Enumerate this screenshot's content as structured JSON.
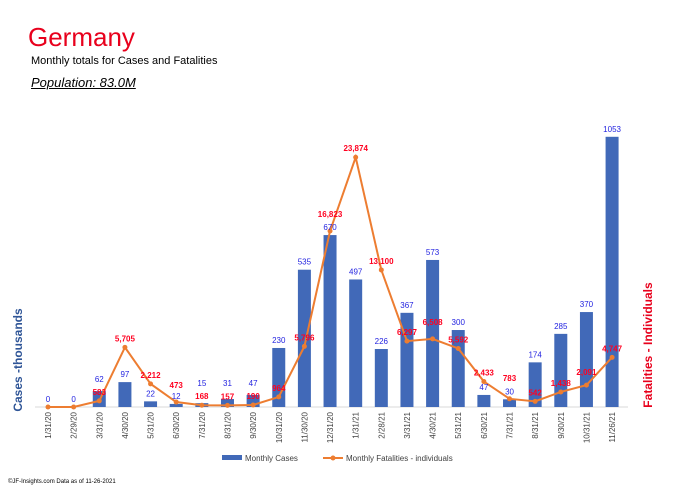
{
  "header": {
    "title": "Germany",
    "subtitle": "Monthly totals for Cases and Fatalities",
    "population": "Population: 83.0M"
  },
  "footer": "©JF-Insights.com  Data as of 11-26-2021",
  "chart_data": {
    "type": "bar+line",
    "categories": [
      "1/31/20",
      "2/29/20",
      "3/31/20",
      "4/30/20",
      "5/31/20",
      "6/30/20",
      "7/31/20",
      "8/31/20",
      "9/30/20",
      "10/31/20",
      "11/30/20",
      "12/31/20",
      "1/31/21",
      "2/28/21",
      "3/31/21",
      "4/30/21",
      "5/31/21",
      "6/30/21",
      "7/31/21",
      "8/31/21",
      "9/30/21",
      "10/31/21",
      "11/26/21"
    ],
    "series": [
      {
        "name": "Monthly Cases",
        "axis": "left",
        "type": "bar",
        "color": "#4169b8",
        "values": [
          0,
          0,
          62,
          97,
          22,
          12,
          15,
          31,
          47,
          230,
          535,
          670,
          497,
          226,
          367,
          573,
          300,
          47,
          30,
          174,
          285,
          370,
          1053
        ]
      },
      {
        "name": "Monthly Fatalities - individuals",
        "axis": "right",
        "type": "line",
        "color": "#ed7d31",
        "values": [
          0,
          0,
          583,
          5705,
          2212,
          473,
          168,
          157,
          190,
          964,
          5796,
          16823,
          23874,
          13100,
          6297,
          6508,
          5592,
          2433,
          783,
          542,
          1438,
          2091,
          4747
        ]
      }
    ],
    "bar_labels": [
      "0",
      "0",
      "62",
      "97",
      "22",
      "12",
      "15",
      "31",
      "47",
      "230",
      "535",
      "670",
      "497",
      "226",
      "367",
      "573",
      "300",
      "47",
      "30",
      "174",
      "285",
      "370",
      "1053"
    ],
    "line_labels": [
      "",
      "",
      "583",
      "5,705",
      "2,212",
      "473",
      "168",
      "157",
      "190",
      "964",
      "5,796",
      "16,823",
      "23,874",
      "13,100",
      "6,297",
      "6,508",
      "5,592",
      "2,433",
      "783",
      "542",
      "1,438",
      "2,091",
      "4,747"
    ],
    "ylabel": "Cases -thousands",
    "y2label": "Fatalities - Individuals",
    "ylim": [
      0,
      1060
    ],
    "y2lim": [
      0,
      26000
    ],
    "grid": false,
    "legend": "bottom"
  }
}
